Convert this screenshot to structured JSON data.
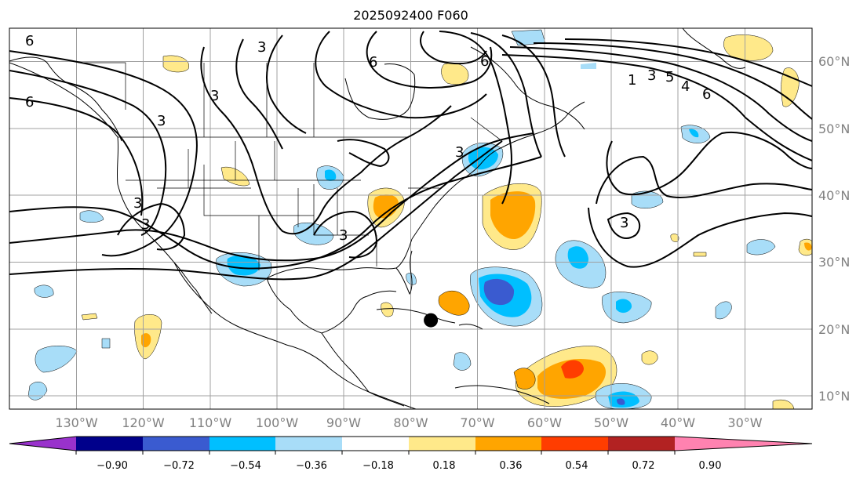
{
  "title": "2025092400 F060",
  "map": {
    "lon_labels": [
      "130°W",
      "120°W",
      "110°W",
      "100°W",
      "90°W",
      "80°W",
      "70°W",
      "60°W",
      "50°W",
      "40°W",
      "30°W"
    ],
    "lon_values": [
      -130,
      -120,
      -110,
      -100,
      -90,
      -80,
      -70,
      -60,
      -50,
      -40,
      -30
    ],
    "lat_labels": [
      "10°N",
      "20°N",
      "30°N",
      "40°N",
      "50°N",
      "60°N"
    ],
    "lat_values": [
      10,
      20,
      30,
      40,
      50,
      60
    ],
    "extent": {
      "lon": [
        -137,
        -17
      ],
      "lat": [
        8,
        65
      ]
    },
    "contour_labels": [
      "6",
      "3",
      "3",
      "6",
      "3",
      "3",
      "6",
      "1",
      "3",
      "5",
      "4",
      "6",
      "3",
      "3",
      "3",
      "3",
      "6"
    ],
    "marker": {
      "lon": -74,
      "lat": 21.3
    }
  },
  "colorbar": {
    "ticks": [
      "−0.90",
      "−0.72",
      "−0.54",
      "−0.36",
      "−0.18",
      "0.18",
      "0.36",
      "0.54",
      "0.72",
      "0.90"
    ],
    "colors": [
      "#9932cc",
      "#00008b",
      "#3a5bd0",
      "#00bfff",
      "#a8ddf8",
      "#ffffff",
      "#ffe98a",
      "#ffa500",
      "#ff3d00",
      "#b22222",
      "#ff82b0"
    ]
  }
}
